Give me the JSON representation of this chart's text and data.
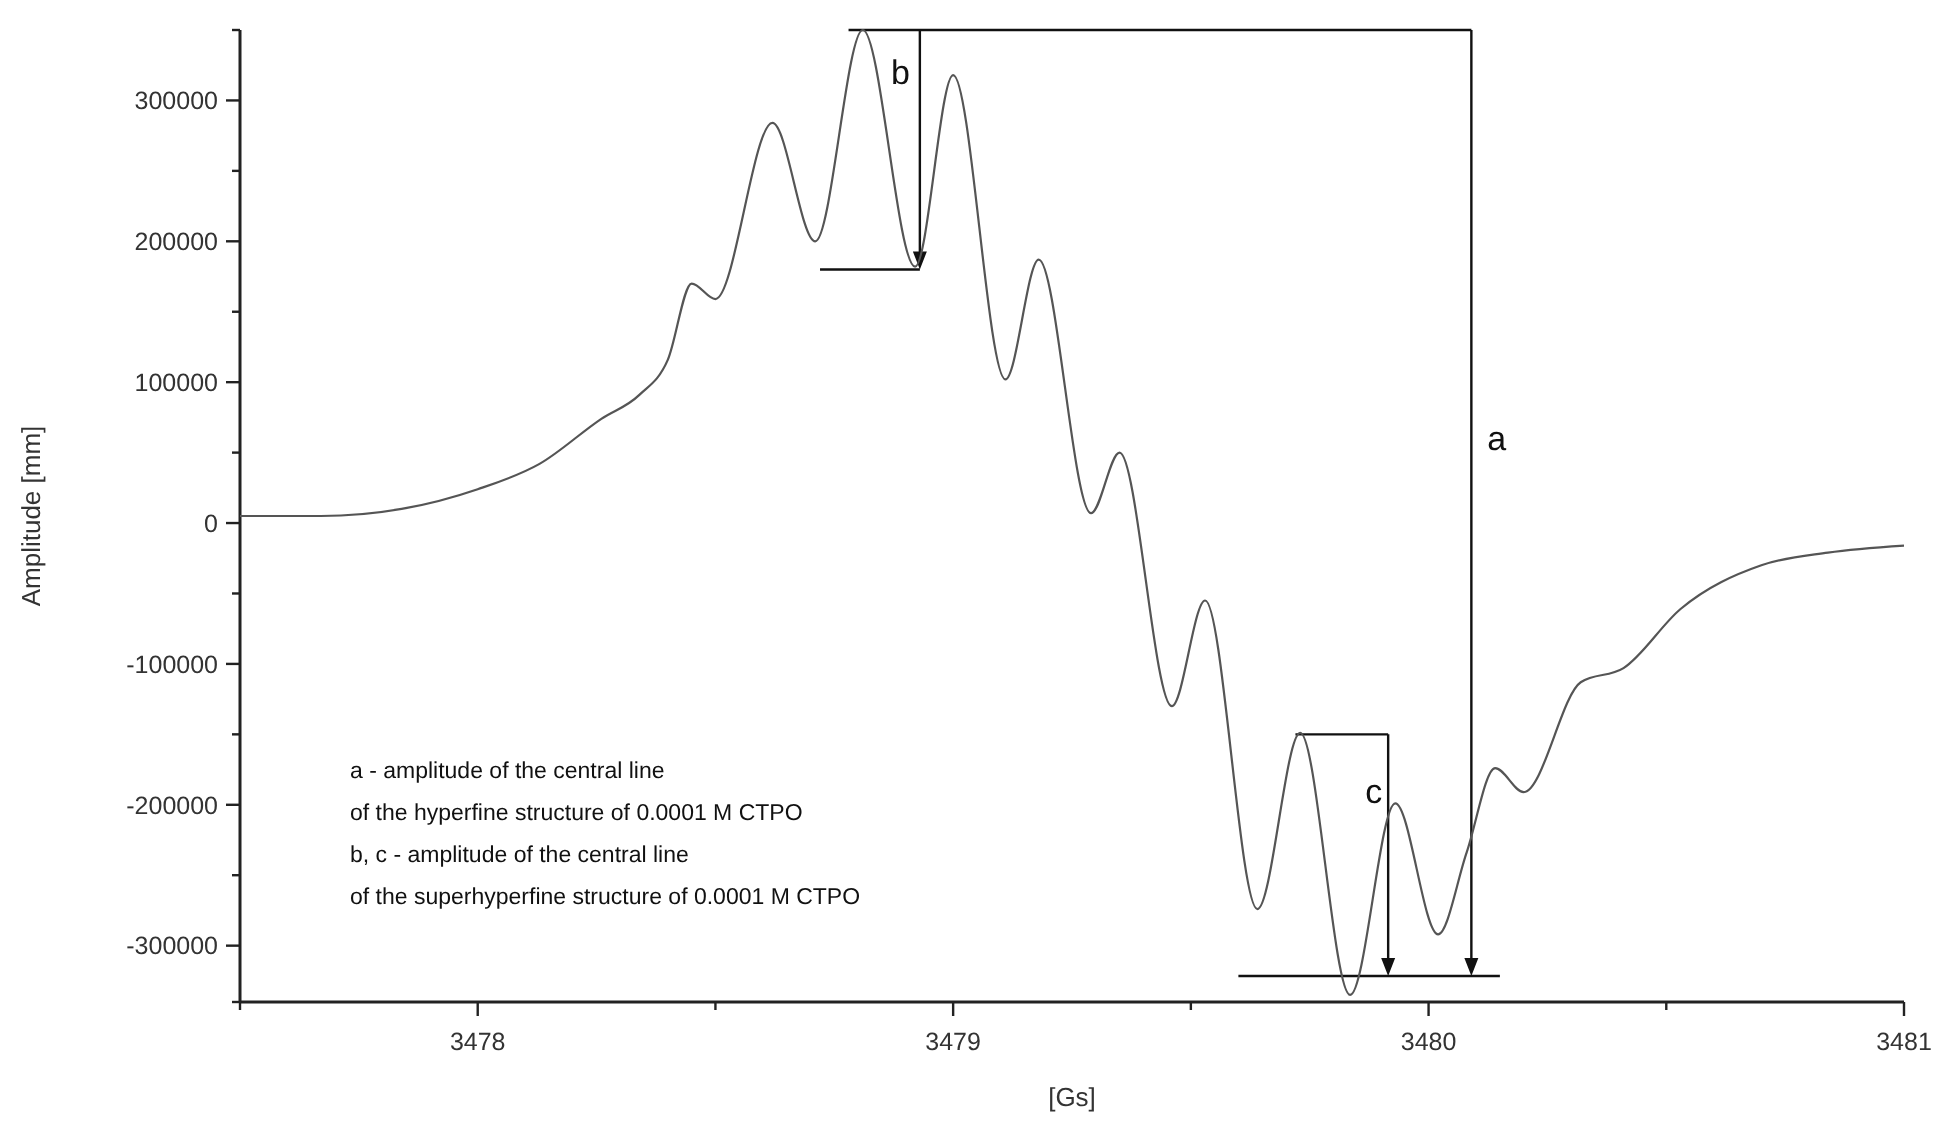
{
  "chart_data": {
    "type": "line",
    "xlabel": "[Gs]",
    "ylabel": "Amplitude [mm]",
    "xlim": [
      3477.5,
      3481
    ],
    "ylim": [
      -340000,
      350000
    ],
    "xticks": [
      {
        "value": 3477.5,
        "label": null
      },
      3478,
      {
        "value": 3478.5,
        "label": null
      },
      3479,
      {
        "value": 3479.5,
        "label": null
      },
      3480,
      {
        "value": 3480.5,
        "label": null
      },
      3481
    ],
    "yticks": [
      {
        "value": -340000,
        "label": null
      },
      -300000,
      {
        "value": -250000,
        "label": null
      },
      -200000,
      {
        "value": -150000,
        "label": null
      },
      -100000,
      {
        "value": -50000,
        "label": null
      },
      0,
      {
        "value": 50000,
        "label": null
      },
      100000,
      {
        "value": 150000,
        "label": null
      },
      200000,
      {
        "value": 250000,
        "label": null
      },
      300000,
      {
        "value": 350000,
        "label": null
      }
    ],
    "grid": false,
    "line_style": "solid",
    "series": [
      {
        "color": "#555555",
        "x": [
          3477.5,
          3477.67,
          3477.84,
          3478.0,
          3478.13,
          3478.26,
          3478.34,
          3478.4,
          3478.45,
          3478.5,
          3478.62,
          3478.71,
          3478.81,
          3478.92,
          3479.0,
          3479.11,
          3479.18,
          3479.29,
          3479.35,
          3479.46,
          3479.53,
          3479.64,
          3479.73,
          3479.835,
          3479.93,
          3480.02,
          3480.08,
          3480.14,
          3480.2,
          3480.32,
          3480.41,
          3480.53,
          3480.7,
          3480.84,
          3481
        ],
        "values": [
          5000,
          5000,
          10000,
          24000,
          42000,
          74000,
          91000,
          116000,
          170000,
          159000,
          284000,
          200000,
          350000,
          182000,
          318000,
          102000,
          187000,
          7000,
          50000,
          -130000,
          -55000,
          -274000,
          -149000,
          -335000,
          -199000,
          -292000,
          -234000,
          -174000,
          -191000,
          -113000,
          -103000,
          -61000,
          -30000,
          -21000,
          -16000
        ]
      }
    ],
    "annotations": [
      "a",
      "b",
      "c",
      "a - amplitude of the central line",
      "of the hyperfine structure of 0.0001 M CTPO",
      "b, c - amplitude of the central line",
      "of the superhyperfine structure of 0.0001 M CTPO"
    ]
  }
}
